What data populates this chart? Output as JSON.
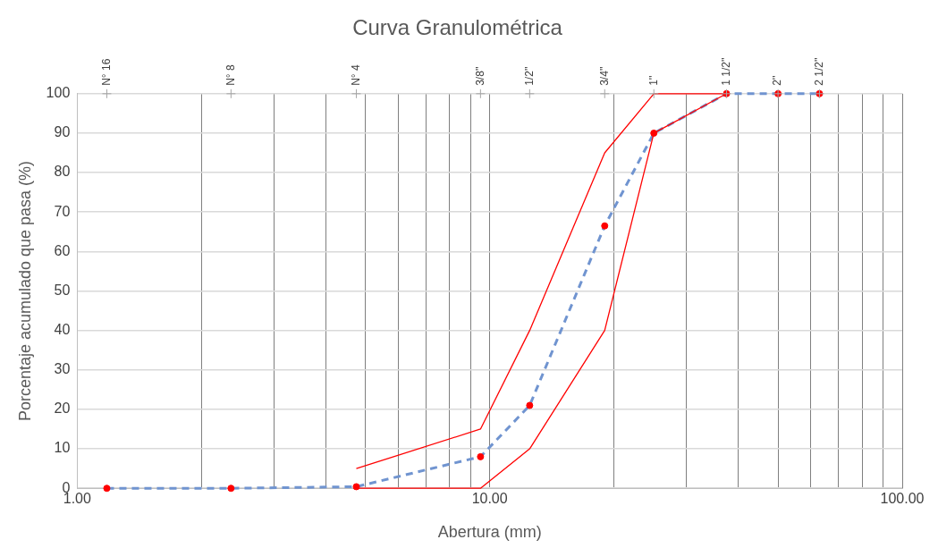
{
  "chart_data": {
    "type": "line",
    "title": "Curva Granulométrica",
    "xlabel": "Abertura (mm)",
    "ylabel": "Porcentaje acumulado que pasa (%)",
    "log": "x",
    "grid": true,
    "legend": false,
    "xlim": [
      1,
      100
    ],
    "xticks": [
      {
        "value": 1,
        "label": "1.00"
      },
      {
        "value": 2,
        "label": null
      },
      {
        "value": 3,
        "label": null
      },
      {
        "value": 4,
        "label": null
      },
      {
        "value": 5,
        "label": null
      },
      {
        "value": 6,
        "label": null
      },
      {
        "value": 7,
        "label": null
      },
      {
        "value": 8,
        "label": null
      },
      {
        "value": 9,
        "label": null
      },
      {
        "value": 10,
        "label": "10.00"
      },
      {
        "value": 20,
        "label": null
      },
      {
        "value": 30,
        "label": null
      },
      {
        "value": 40,
        "label": null
      },
      {
        "value": 50,
        "label": null
      },
      {
        "value": 60,
        "label": null
      },
      {
        "value": 70,
        "label": null
      },
      {
        "value": 80,
        "label": null
      },
      {
        "value": 90,
        "label": null
      },
      {
        "value": 100,
        "label": "100.00"
      }
    ],
    "annotations": [
      {
        "text": "N° 16",
        "x": 1.18
      },
      {
        "text": "N° 8",
        "x": 2.36
      },
      {
        "text": "N° 4",
        "x": 4.75
      },
      {
        "text": "3/8''",
        "x": 9.5
      },
      {
        "text": "1/2''",
        "x": 12.5
      },
      {
        "text": "3/4''",
        "x": 19
      },
      {
        "text": "1''",
        "x": 25,
        "y": 100
      },
      {
        "text": "1 1/2''",
        "x": 37.5,
        "y": 100
      },
      {
        "text": "2''",
        "x": 50,
        "y": 100
      },
      {
        "text": "2 1/2''",
        "x": 63,
        "y": 100
      }
    ],
    "ylim": [
      0,
      100
    ],
    "yticks": [
      0,
      10,
      20,
      30,
      40,
      50,
      60,
      70,
      80,
      90,
      100
    ],
    "series": [
      {
        "color": "#ff0000",
        "marker": "none",
        "line_style": "solid",
        "x": [
          4.75,
          9.5,
          12.5,
          19,
          25,
          37.5
        ],
        "values": [
          5,
          15,
          40,
          85,
          100,
          100
        ]
      },
      {
        "color": "#ff0000",
        "marker": "none",
        "line_style": "solid",
        "x": [
          4.75,
          9.5,
          12.5,
          19,
          25,
          37.5
        ],
        "values": [
          0,
          0,
          10,
          40,
          90,
          100
        ]
      },
      {
        "color": "#7094d0",
        "marker": "none",
        "line_style": "dashed",
        "x": [
          1.18,
          2.36,
          4.75,
          9.5,
          12.5,
          19,
          25,
          37.5,
          50,
          63
        ],
        "values": [
          0,
          0,
          0.4,
          8,
          21,
          66.5,
          90,
          100,
          100,
          100
        ]
      },
      {
        "type": "scatter",
        "color": "#ff0000",
        "marker": "circle",
        "x": [
          1.18,
          2.36,
          4.75,
          9.5,
          12.5,
          19,
          25,
          37.5,
          50,
          63
        ],
        "values": [
          0,
          0,
          0.4,
          8,
          21,
          66.5,
          90,
          100,
          100,
          100
        ]
      }
    ]
  }
}
